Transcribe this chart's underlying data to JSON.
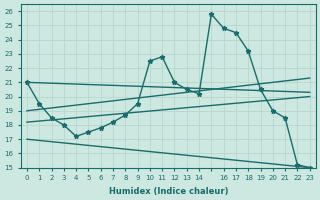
{
  "xlabel": "Humidex (Indice chaleur)",
  "xlim": [
    -0.5,
    23.5
  ],
  "ylim": [
    15,
    26.5
  ],
  "yticks": [
    15,
    16,
    17,
    18,
    19,
    20,
    21,
    22,
    23,
    24,
    25,
    26
  ],
  "bg_color": "#cce8e0",
  "grid_color": "#b8d8d0",
  "line_color": "#1a6b6b",
  "line_width": 1.0,
  "marker_size": 3.5,
  "straight_lines": [
    {
      "x0": 0,
      "y0": 21.0,
      "x1": 23,
      "y1": 20.3
    },
    {
      "x0": 0,
      "y0": 19.0,
      "x1": 23,
      "y1": 21.3
    },
    {
      "x0": 0,
      "y0": 18.2,
      "x1": 23,
      "y1": 20.0
    },
    {
      "x0": 0,
      "y0": 17.0,
      "x1": 23,
      "y1": 15.0
    }
  ],
  "main_x": [
    0,
    1,
    2,
    3,
    4,
    5,
    6,
    7,
    8,
    9,
    10,
    11,
    12,
    13,
    14,
    15,
    16,
    17,
    18,
    19,
    20,
    21,
    22,
    23
  ],
  "main_y": [
    21.0,
    19.5,
    18.5,
    18.0,
    17.2,
    17.5,
    17.8,
    18.2,
    18.7,
    19.5,
    22.5,
    22.8,
    21.0,
    20.5,
    20.2,
    25.8,
    24.8,
    24.5,
    23.2,
    20.5,
    19.0,
    18.5,
    15.2,
    15.0
  ]
}
